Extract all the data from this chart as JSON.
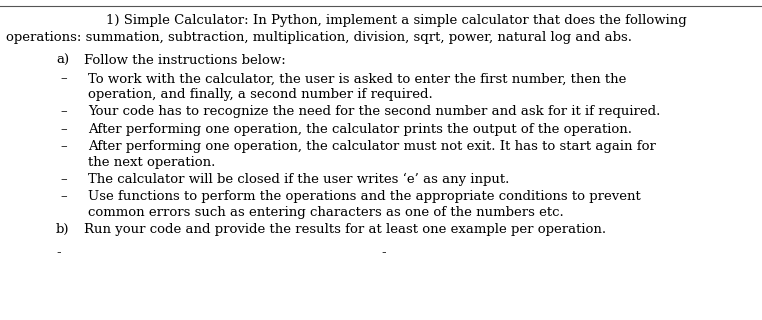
{
  "bg_color": "#ffffff",
  "top_line_color": "#555555",
  "title_line1": "1) Simple Calculator: In Python, implement a simple calculator that does the following",
  "title_line2": "operations: summation, subtraction, multiplication, division, sqrt, power, natural log and abs.",
  "section_a_label": "a)",
  "section_a_text": "Follow the instructions below:",
  "bullet_texts": [
    [
      "To work with the calculator, the user is asked to enter the first number, then the",
      "operation, and finally, a second number if required."
    ],
    [
      "Your code has to recognize the need for the second number and ask for it if required."
    ],
    [
      "After performing one operation, the calculator prints the output of the operation."
    ],
    [
      "After performing one operation, the calculator must not exit. It has to start again for",
      "the next operation."
    ],
    [
      "The calculator will be closed if the user writes ‘e’ as any input."
    ],
    [
      "Use functions to perform the operations and the appropriate conditions to prevent",
      "common errors such as entering characters as one of the numbers etc."
    ]
  ],
  "section_b_label": "b)",
  "section_b_text": "Run your code and provide the results for at least one example per operation.",
  "font_family": "DejaVu Serif",
  "font_size": 9.5,
  "bottom_dashes": "- –"
}
